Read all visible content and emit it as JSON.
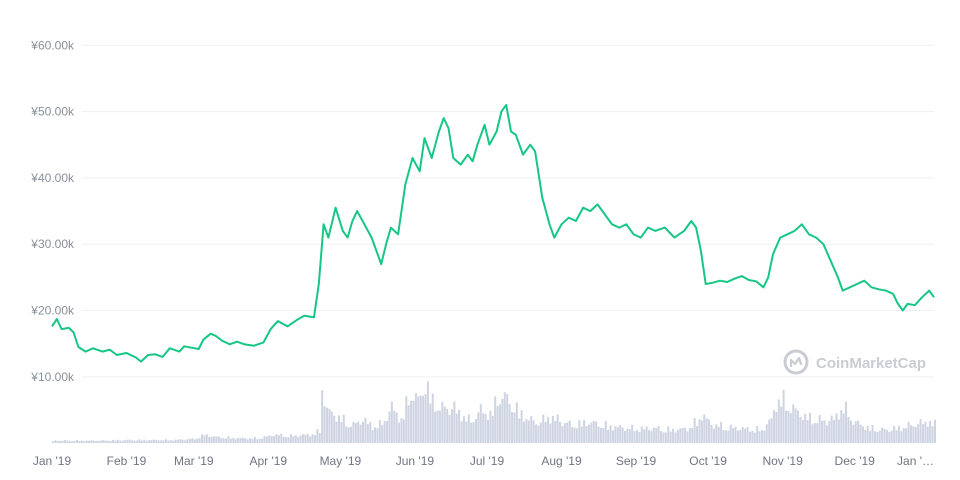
{
  "chart_data": {
    "type": "line",
    "title": "",
    "xlabel": "",
    "ylabel": "",
    "currency_symbol": "¥",
    "y_ticks": [
      "¥60.00k",
      "¥50.00k",
      "¥40.00k",
      "¥30.00k",
      "¥20.00k",
      "¥10.00k"
    ],
    "y_tick_values": [
      60000,
      50000,
      40000,
      30000,
      20000,
      10000
    ],
    "ylim": [
      5000,
      62000
    ],
    "x_ticks": [
      "Jan '19",
      "Feb '19",
      "Mar '19",
      "Apr '19",
      "May '19",
      "Jun '19",
      "Jul '19",
      "Aug '19",
      "Sep '19",
      "Oct '19",
      "Nov '19",
      "Dec '19",
      "Jan '…"
    ],
    "x_tick_dates": [
      "2019-01-01",
      "2019-02-01",
      "2019-03-01",
      "2019-04-01",
      "2019-05-01",
      "2019-06-01",
      "2019-07-01",
      "2019-08-01",
      "2019-09-01",
      "2019-10-01",
      "2019-11-01",
      "2019-12-01",
      "2020-01-01"
    ],
    "xlim": [
      "2019-01-01",
      "2020-01-03"
    ],
    "line_color": "#16c784",
    "volume_color": "#cfd4e2",
    "grid": true,
    "watermark": "CoinMarketCap",
    "price_series": [
      [
        "2019-01-01",
        17600
      ],
      [
        "2019-01-03",
        18700
      ],
      [
        "2019-01-05",
        17200
      ],
      [
        "2019-01-08",
        17400
      ],
      [
        "2019-01-10",
        16700
      ],
      [
        "2019-01-12",
        14500
      ],
      [
        "2019-01-15",
        13800
      ],
      [
        "2019-01-18",
        14300
      ],
      [
        "2019-01-22",
        13800
      ],
      [
        "2019-01-25",
        14100
      ],
      [
        "2019-01-28",
        13300
      ],
      [
        "2019-02-01",
        13600
      ],
      [
        "2019-02-05",
        12900
      ],
      [
        "2019-02-07",
        12300
      ],
      [
        "2019-02-10",
        13300
      ],
      [
        "2019-02-13",
        13400
      ],
      [
        "2019-02-16",
        13000
      ],
      [
        "2019-02-19",
        14300
      ],
      [
        "2019-02-23",
        13800
      ],
      [
        "2019-02-25",
        14600
      ],
      [
        "2019-02-28",
        14400
      ],
      [
        "2019-03-03",
        14200
      ],
      [
        "2019-03-05",
        15600
      ],
      [
        "2019-03-08",
        16500
      ],
      [
        "2019-03-10",
        16200
      ],
      [
        "2019-03-13",
        15400
      ],
      [
        "2019-03-16",
        14900
      ],
      [
        "2019-03-19",
        15300
      ],
      [
        "2019-03-22",
        14900
      ],
      [
        "2019-03-26",
        14700
      ],
      [
        "2019-03-30",
        15200
      ],
      [
        "2019-04-02",
        17200
      ],
      [
        "2019-04-05",
        18400
      ],
      [
        "2019-04-09",
        17600
      ],
      [
        "2019-04-13",
        18600
      ],
      [
        "2019-04-16",
        19200
      ],
      [
        "2019-04-20",
        19000
      ],
      [
        "2019-04-22",
        24000
      ],
      [
        "2019-04-24",
        33000
      ],
      [
        "2019-04-26",
        31000
      ],
      [
        "2019-04-29",
        35500
      ],
      [
        "2019-05-02",
        32000
      ],
      [
        "2019-05-04",
        31000
      ],
      [
        "2019-05-06",
        33500
      ],
      [
        "2019-05-08",
        35000
      ],
      [
        "2019-05-11",
        33000
      ],
      [
        "2019-05-14",
        31000
      ],
      [
        "2019-05-16",
        29000
      ],
      [
        "2019-05-18",
        27000
      ],
      [
        "2019-05-20",
        30000
      ],
      [
        "2019-05-22",
        32500
      ],
      [
        "2019-05-25",
        31500
      ],
      [
        "2019-05-28",
        39000
      ],
      [
        "2019-05-31",
        43000
      ],
      [
        "2019-06-03",
        41000
      ],
      [
        "2019-06-05",
        46000
      ],
      [
        "2019-06-08",
        43000
      ],
      [
        "2019-06-11",
        47000
      ],
      [
        "2019-06-13",
        49000
      ],
      [
        "2019-06-15",
        47500
      ],
      [
        "2019-06-17",
        43000
      ],
      [
        "2019-06-20",
        42000
      ],
      [
        "2019-06-23",
        43500
      ],
      [
        "2019-06-25",
        42500
      ],
      [
        "2019-06-27",
        45000
      ],
      [
        "2019-06-30",
        48000
      ],
      [
        "2019-07-02",
        45000
      ],
      [
        "2019-07-05",
        47000
      ],
      [
        "2019-07-07",
        50000
      ],
      [
        "2019-07-09",
        51000
      ],
      [
        "2019-07-11",
        47000
      ],
      [
        "2019-07-13",
        46500
      ],
      [
        "2019-07-16",
        43500
      ],
      [
        "2019-07-19",
        45000
      ],
      [
        "2019-07-21",
        44000
      ],
      [
        "2019-07-24",
        37000
      ],
      [
        "2019-07-27",
        33000
      ],
      [
        "2019-07-29",
        31000
      ],
      [
        "2019-08-01",
        33000
      ],
      [
        "2019-08-04",
        34000
      ],
      [
        "2019-08-07",
        33500
      ],
      [
        "2019-08-10",
        35500
      ],
      [
        "2019-08-13",
        35000
      ],
      [
        "2019-08-16",
        36000
      ],
      [
        "2019-08-19",
        34500
      ],
      [
        "2019-08-22",
        33000
      ],
      [
        "2019-08-25",
        32500
      ],
      [
        "2019-08-28",
        33000
      ],
      [
        "2019-08-31",
        31500
      ],
      [
        "2019-09-03",
        31000
      ],
      [
        "2019-09-06",
        32500
      ],
      [
        "2019-09-09",
        32000
      ],
      [
        "2019-09-13",
        32500
      ],
      [
        "2019-09-17",
        31000
      ],
      [
        "2019-09-21",
        32000
      ],
      [
        "2019-09-24",
        33500
      ],
      [
        "2019-09-26",
        32500
      ],
      [
        "2019-09-28",
        29000
      ],
      [
        "2019-09-30",
        24000
      ],
      [
        "2019-10-03",
        24200
      ],
      [
        "2019-10-06",
        24500
      ],
      [
        "2019-10-09",
        24300
      ],
      [
        "2019-10-12",
        24800
      ],
      [
        "2019-10-15",
        25200
      ],
      [
        "2019-10-18",
        24600
      ],
      [
        "2019-10-21",
        24400
      ],
      [
        "2019-10-24",
        23500
      ],
      [
        "2019-10-26",
        25000
      ],
      [
        "2019-10-28",
        28500
      ],
      [
        "2019-10-31",
        31000
      ],
      [
        "2019-11-03",
        31500
      ],
      [
        "2019-11-06",
        32000
      ],
      [
        "2019-11-09",
        33000
      ],
      [
        "2019-11-12",
        31500
      ],
      [
        "2019-11-15",
        31000
      ],
      [
        "2019-11-18",
        30000
      ],
      [
        "2019-11-21",
        27500
      ],
      [
        "2019-11-24",
        25000
      ],
      [
        "2019-11-26",
        23000
      ],
      [
        "2019-11-29",
        23500
      ],
      [
        "2019-12-02",
        24000
      ],
      [
        "2019-12-05",
        24500
      ],
      [
        "2019-12-08",
        23500
      ],
      [
        "2019-12-11",
        23200
      ],
      [
        "2019-12-14",
        23000
      ],
      [
        "2019-12-17",
        22500
      ],
      [
        "2019-12-19",
        21000
      ],
      [
        "2019-12-21",
        20000
      ],
      [
        "2019-12-23",
        21000
      ],
      [
        "2019-12-26",
        20800
      ],
      [
        "2019-12-29",
        22000
      ],
      [
        "2020-01-01",
        23000
      ],
      [
        "2020-01-03",
        22000
      ]
    ],
    "volume_series": [
      [
        "2019-01-01",
        0.04
      ],
      [
        "2019-01-10",
        0.04
      ],
      [
        "2019-01-20",
        0.04
      ],
      [
        "2019-02-01",
        0.05
      ],
      [
        "2019-02-10",
        0.05
      ],
      [
        "2019-02-20",
        0.05
      ],
      [
        "2019-03-01",
        0.07
      ],
      [
        "2019-03-05",
        0.14
      ],
      [
        "2019-03-10",
        0.1
      ],
      [
        "2019-03-20",
        0.08
      ],
      [
        "2019-03-28",
        0.08
      ],
      [
        "2019-04-03",
        0.14
      ],
      [
        "2019-04-10",
        0.12
      ],
      [
        "2019-04-18",
        0.14
      ],
      [
        "2019-04-22",
        0.2
      ],
      [
        "2019-04-23",
        0.96
      ],
      [
        "2019-04-25",
        0.55
      ],
      [
        "2019-04-28",
        0.48
      ],
      [
        "2019-05-03",
        0.36
      ],
      [
        "2019-05-06",
        0.3
      ],
      [
        "2019-05-10",
        0.4
      ],
      [
        "2019-05-14",
        0.28
      ],
      [
        "2019-05-18",
        0.32
      ],
      [
        "2019-05-22",
        0.6
      ],
      [
        "2019-05-26",
        0.4
      ],
      [
        "2019-05-30",
        0.86
      ],
      [
        "2019-06-02",
        0.7
      ],
      [
        "2019-06-05",
        1.0
      ],
      [
        "2019-06-08",
        0.7
      ],
      [
        "2019-06-12",
        0.58
      ],
      [
        "2019-06-16",
        0.62
      ],
      [
        "2019-06-20",
        0.48
      ],
      [
        "2019-06-24",
        0.36
      ],
      [
        "2019-06-28",
        0.55
      ],
      [
        "2019-07-02",
        0.48
      ],
      [
        "2019-07-06",
        0.82
      ],
      [
        "2019-07-10",
        0.7
      ],
      [
        "2019-07-14",
        0.52
      ],
      [
        "2019-07-18",
        0.4
      ],
      [
        "2019-07-22",
        0.34
      ],
      [
        "2019-07-26",
        0.44
      ],
      [
        "2019-07-30",
        0.4
      ],
      [
        "2019-08-05",
        0.3
      ],
      [
        "2019-08-12",
        0.35
      ],
      [
        "2019-08-18",
        0.3
      ],
      [
        "2019-08-25",
        0.26
      ],
      [
        "2019-09-01",
        0.24
      ],
      [
        "2019-09-08",
        0.25
      ],
      [
        "2019-09-15",
        0.22
      ],
      [
        "2019-09-22",
        0.24
      ],
      [
        "2019-09-26",
        0.36
      ],
      [
        "2019-09-28",
        0.48
      ],
      [
        "2019-10-02",
        0.32
      ],
      [
        "2019-10-09",
        0.26
      ],
      [
        "2019-10-16",
        0.24
      ],
      [
        "2019-10-23",
        0.22
      ],
      [
        "2019-10-27",
        0.4
      ],
      [
        "2019-10-29",
        0.68
      ],
      [
        "2019-10-31",
        0.75
      ],
      [
        "2019-11-04",
        0.6
      ],
      [
        "2019-11-10",
        0.44
      ],
      [
        "2019-11-17",
        0.38
      ],
      [
        "2019-11-22",
        0.4
      ],
      [
        "2019-11-26",
        0.62
      ],
      [
        "2019-11-30",
        0.36
      ],
      [
        "2019-12-06",
        0.26
      ],
      [
        "2019-12-13",
        0.22
      ],
      [
        "2019-12-20",
        0.26
      ],
      [
        "2019-12-26",
        0.32
      ],
      [
        "2019-12-31",
        0.36
      ],
      [
        "2020-01-03",
        0.32
      ]
    ]
  }
}
